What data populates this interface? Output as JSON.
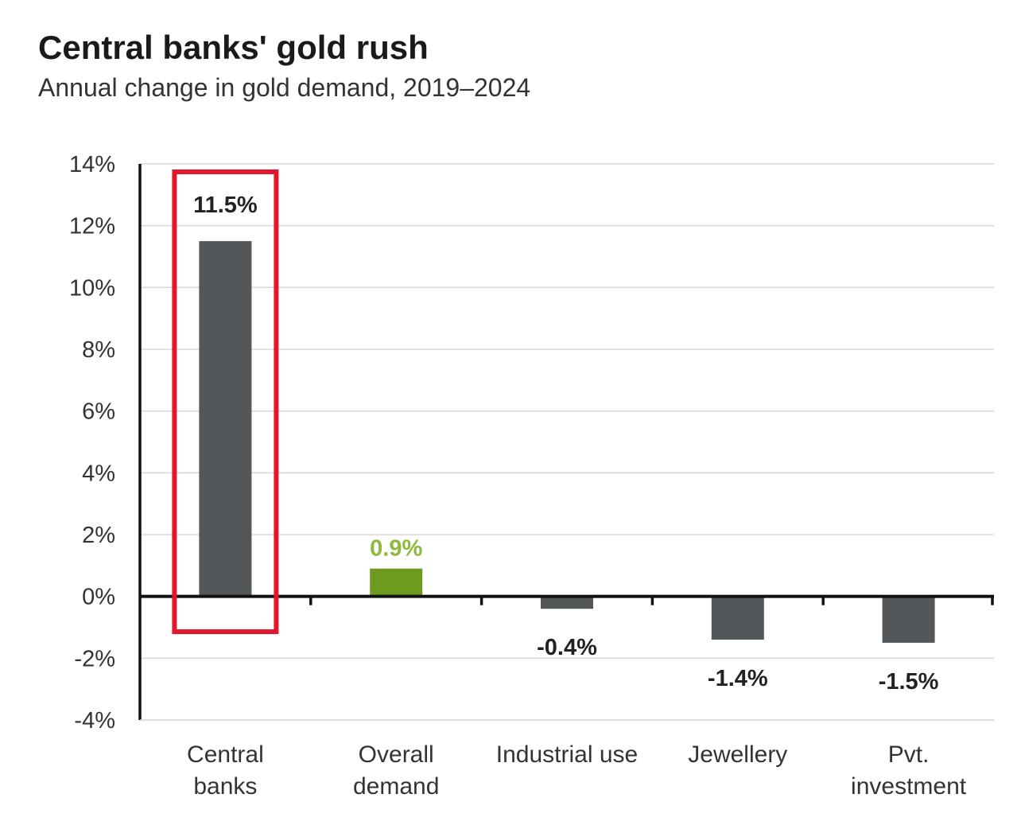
{
  "header": {
    "title": "Central banks' gold rush",
    "subtitle": "Annual change in gold demand, 2019–2024"
  },
  "chart_data": {
    "type": "bar",
    "title": "Central banks' gold rush",
    "subtitle": "Annual change in gold demand, 2019–2024",
    "categories": [
      [
        "Central",
        "banks"
      ],
      [
        "Overall",
        "demand"
      ],
      [
        "Industrial use"
      ],
      [
        "Jewellery"
      ],
      [
        "Pvt.",
        "investment"
      ]
    ],
    "values": [
      11.5,
      0.9,
      -0.4,
      -1.4,
      -1.5
    ],
    "data_labels": [
      "11.5%",
      "0.9%",
      "-0.4%",
      "-1.4%",
      "-1.5%"
    ],
    "bar_colors": [
      "#54575a",
      "#6e9a1f",
      "#54575a",
      "#54575a",
      "#54575a"
    ],
    "label_colors": [
      "#222222",
      "#8cb83c",
      "#222222",
      "#222222",
      "#222222"
    ],
    "ylim": [
      -4,
      14
    ],
    "yticks": [
      14,
      12,
      10,
      8,
      6,
      4,
      2,
      0,
      -2,
      -4
    ],
    "ytick_labels": [
      "14%",
      "12%",
      "10%",
      "8%",
      "6%",
      "4%",
      "2%",
      "0%",
      "-2%",
      "-4%"
    ],
    "xlabel": "",
    "ylabel": "",
    "grid": true,
    "highlight_category_index": 0,
    "highlight_color": "#e0182d",
    "gridline_color": "#d9d9d9",
    "axis_color": "#111111"
  }
}
